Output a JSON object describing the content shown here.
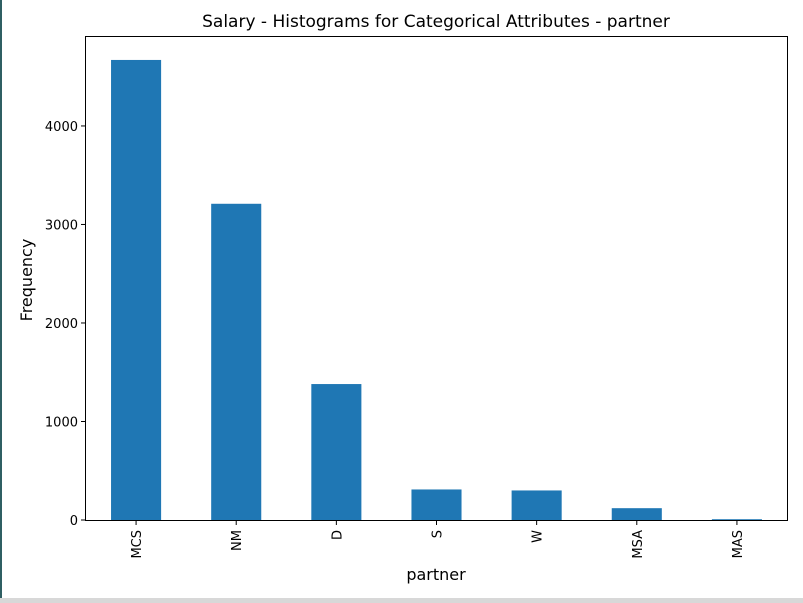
{
  "chart_data": {
    "type": "bar",
    "title": "Salary - Histograms for Categorical Attributes - partner",
    "xlabel": "partner",
    "ylabel": "Frequency",
    "categories": [
      "MCS",
      "NM",
      "D",
      "S",
      "W",
      "MSA",
      "MAS"
    ],
    "values": [
      4670,
      3210,
      1380,
      310,
      300,
      120,
      8
    ],
    "ylim": [
      0,
      4903
    ],
    "yticks": [
      0,
      1000,
      2000,
      3000,
      4000
    ],
    "ytick_labels": [
      "0",
      "1000",
      "2000",
      "3000",
      "4000"
    ],
    "grid": false,
    "legend": "none",
    "bar_color": "#1f77b4"
  }
}
